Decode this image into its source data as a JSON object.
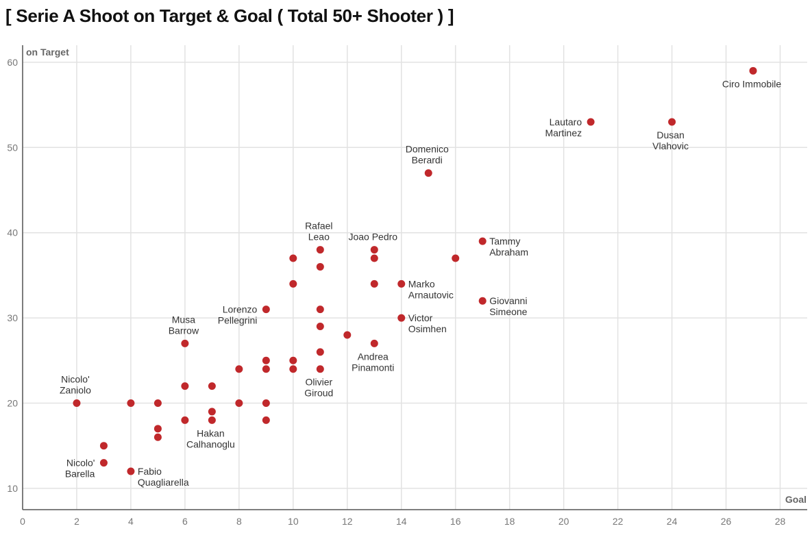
{
  "chart_data": {
    "type": "scatter",
    "title": "[ Serie A Shoot on Target & Goal ( Total 50+ Shooter ) ]",
    "xlabel": "Goal",
    "ylabel": "on Target",
    "xlim": [
      0,
      29
    ],
    "ylim": [
      7.5,
      62
    ],
    "xticks": [
      0,
      2,
      4,
      6,
      8,
      10,
      12,
      14,
      16,
      18,
      20,
      22,
      24,
      26,
      28
    ],
    "yticks": [
      10,
      20,
      30,
      40,
      50,
      60
    ],
    "grid": true,
    "point_color": "#c0282b",
    "points": [
      {
        "x": 27,
        "y": 59,
        "label": [
          "Ciro Immobile"
        ],
        "pos": "below"
      },
      {
        "x": 21,
        "y": 53,
        "label": [
          "Lautaro",
          "Martinez"
        ],
        "pos": "left"
      },
      {
        "x": 24,
        "y": 53,
        "label": [
          "Dusan",
          "Vlahovic"
        ],
        "pos": "below"
      },
      {
        "x": 15,
        "y": 47,
        "label": [
          "Domenico",
          "Berardi"
        ],
        "pos": "above"
      },
      {
        "x": 17,
        "y": 39,
        "label": [
          "Tammy",
          "Abraham"
        ],
        "pos": "right"
      },
      {
        "x": 16,
        "y": 37,
        "label": [],
        "pos": ""
      },
      {
        "x": 11,
        "y": 38,
        "label": [
          "Rafael",
          "Leao"
        ],
        "pos": "above"
      },
      {
        "x": 13,
        "y": 38,
        "label": [
          "Joao Pedro"
        ],
        "pos": "above"
      },
      {
        "x": 13,
        "y": 37,
        "label": [],
        "pos": ""
      },
      {
        "x": 10,
        "y": 37,
        "label": [],
        "pos": ""
      },
      {
        "x": 11,
        "y": 36,
        "label": [],
        "pos": ""
      },
      {
        "x": 10,
        "y": 34,
        "label": [],
        "pos": ""
      },
      {
        "x": 13,
        "y": 34,
        "label": [],
        "pos": ""
      },
      {
        "x": 14,
        "y": 34,
        "label": [
          "Marko",
          "Arnautovic"
        ],
        "pos": "right"
      },
      {
        "x": 17,
        "y": 32,
        "label": [
          "Giovanni",
          "Simeone"
        ],
        "pos": "right"
      },
      {
        "x": 9,
        "y": 31,
        "label": [
          "Lorenzo",
          "Pellegrini"
        ],
        "pos": "left"
      },
      {
        "x": 11,
        "y": 31,
        "label": [],
        "pos": ""
      },
      {
        "x": 14,
        "y": 30,
        "label": [
          "Victor",
          "Osimhen"
        ],
        "pos": "right"
      },
      {
        "x": 11,
        "y": 29,
        "label": [],
        "pos": ""
      },
      {
        "x": 12,
        "y": 28,
        "label": [],
        "pos": ""
      },
      {
        "x": 6,
        "y": 27,
        "label": [
          "Musa",
          "Barrow"
        ],
        "pos": "above"
      },
      {
        "x": 13,
        "y": 27,
        "label": [
          "Andrea",
          "Pinamonti"
        ],
        "pos": "below"
      },
      {
        "x": 11,
        "y": 26,
        "label": [],
        "pos": ""
      },
      {
        "x": 9,
        "y": 25,
        "label": [],
        "pos": ""
      },
      {
        "x": 10,
        "y": 25,
        "label": [],
        "pos": ""
      },
      {
        "x": 8,
        "y": 24,
        "label": [],
        "pos": ""
      },
      {
        "x": 9,
        "y": 24,
        "label": [],
        "pos": ""
      },
      {
        "x": 10,
        "y": 24,
        "label": [],
        "pos": ""
      },
      {
        "x": 11,
        "y": 24,
        "label": [
          "Olivier",
          "Giroud"
        ],
        "pos": "below"
      },
      {
        "x": 6,
        "y": 22,
        "label": [],
        "pos": ""
      },
      {
        "x": 7,
        "y": 22,
        "label": [],
        "pos": ""
      },
      {
        "x": 2,
        "y": 20,
        "label": [
          "Nicolo'",
          "Zaniolo"
        ],
        "pos": "above"
      },
      {
        "x": 4,
        "y": 20,
        "label": [],
        "pos": ""
      },
      {
        "x": 5,
        "y": 20,
        "label": [],
        "pos": ""
      },
      {
        "x": 8,
        "y": 20,
        "label": [],
        "pos": ""
      },
      {
        "x": 9,
        "y": 20,
        "label": [],
        "pos": ""
      },
      {
        "x": 7,
        "y": 19,
        "label": [],
        "pos": ""
      },
      {
        "x": 6,
        "y": 18,
        "label": [],
        "pos": ""
      },
      {
        "x": 7,
        "y": 18,
        "label": [
          "Hakan",
          "Calhanoglu"
        ],
        "pos": "below"
      },
      {
        "x": 9,
        "y": 18,
        "label": [],
        "pos": ""
      },
      {
        "x": 5,
        "y": 17,
        "label": [],
        "pos": ""
      },
      {
        "x": 5,
        "y": 16,
        "label": [],
        "pos": ""
      },
      {
        "x": 3,
        "y": 15,
        "label": [],
        "pos": ""
      },
      {
        "x": 3,
        "y": 13,
        "label": [
          "Nicolo'",
          "Barella"
        ],
        "pos": "left"
      },
      {
        "x": 4,
        "y": 12,
        "label": [
          "Fabio",
          "Quagliarella"
        ],
        "pos": "right"
      }
    ]
  }
}
